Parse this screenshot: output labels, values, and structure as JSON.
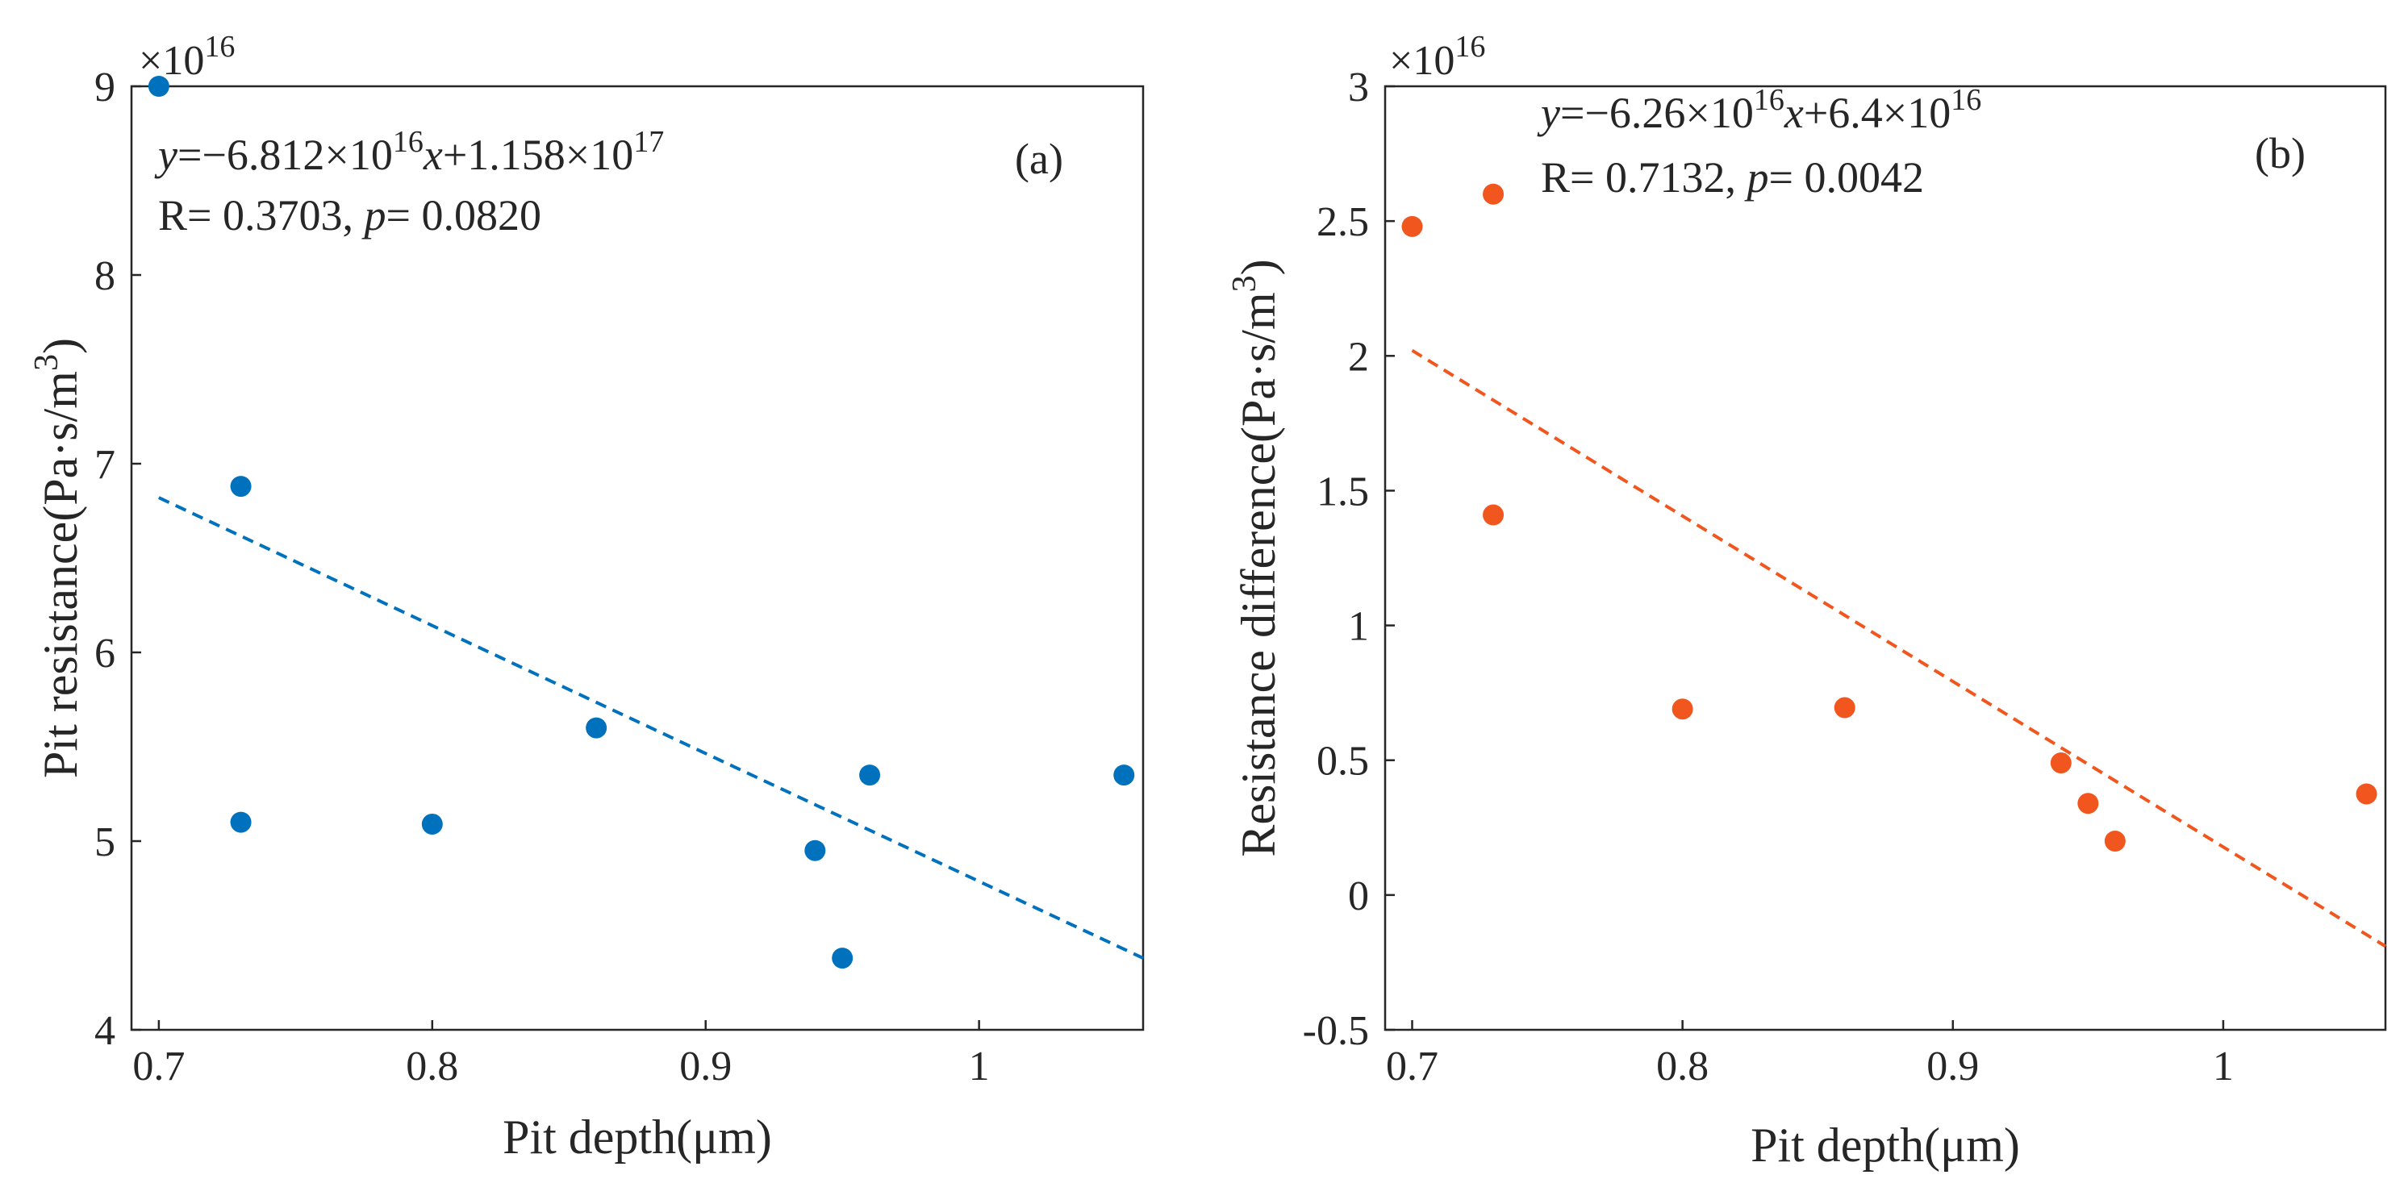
{
  "chart_data": [
    {
      "type": "scatter",
      "panel_label": "(a)",
      "xlabel": "Pit depth(μm)",
      "ylabel": "Pit resistance(Pa·s/m³)",
      "ylabel_main": "Pit resistance(Pa·s/m",
      "ylabel_sup": "3",
      "ylabel_close": ")",
      "y_exponent_label": "×10",
      "y_exponent_power": "16",
      "xlim": [
        0.69,
        1.06
      ],
      "ylim": [
        4,
        9
      ],
      "xticks": [
        0.7,
        0.8,
        0.9,
        1
      ],
      "xtick_labels": [
        "0.7",
        "0.8",
        "0.9",
        "1"
      ],
      "yticks": [
        4,
        5,
        6,
        7,
        8,
        9
      ],
      "ytick_labels": [
        "4",
        "5",
        "6",
        "7",
        "8",
        "9"
      ],
      "color": "#0072BD",
      "points": [
        {
          "x": 0.7,
          "y": 9.0
        },
        {
          "x": 0.73,
          "y": 6.88
        },
        {
          "x": 0.73,
          "y": 5.1
        },
        {
          "x": 0.8,
          "y": 5.09
        },
        {
          "x": 0.86,
          "y": 5.6
        },
        {
          "x": 0.94,
          "y": 4.95
        },
        {
          "x": 0.95,
          "y": 4.38
        },
        {
          "x": 0.96,
          "y": 5.35
        },
        {
          "x": 1.053,
          "y": 5.35
        }
      ],
      "fit_line": {
        "x": [
          0.7,
          1.06
        ],
        "y": [
          6.82,
          4.38
        ]
      },
      "annotation": {
        "eq_y": "y",
        "eq_a": "=−6.812×10",
        "eq_a_exp": "16",
        "eq_x": "x",
        "eq_b": "+1.158×10",
        "eq_b_exp": "17",
        "r_text": "R= 0.3703, ",
        "p_sym": "p",
        "p_text": "= 0.0820"
      }
    },
    {
      "type": "scatter",
      "panel_label": "(b)",
      "xlabel": "Pit depth(μm)",
      "ylabel": "Resistance difference(Pa·s/m³)",
      "ylabel_main": "Resistance difference(Pa·s/m",
      "ylabel_sup": "3",
      "ylabel_close": ")",
      "y_exponent_label": "×10",
      "y_exponent_power": "16",
      "xlim": [
        0.69,
        1.06
      ],
      "ylim": [
        -0.5,
        3
      ],
      "xticks": [
        0.7,
        0.8,
        0.9,
        1
      ],
      "xtick_labels": [
        "0.7",
        "0.8",
        "0.9",
        "1"
      ],
      "yticks": [
        -0.5,
        0,
        0.5,
        1,
        1.5,
        2,
        2.5,
        3
      ],
      "ytick_labels": [
        "-0.5",
        "0",
        "0.5",
        "1",
        "1.5",
        "2",
        "2.5",
        "3"
      ],
      "color": "#F0561D",
      "points": [
        {
          "x": 0.7,
          "y": 2.48
        },
        {
          "x": 0.73,
          "y": 2.6
        },
        {
          "x": 0.73,
          "y": 1.41
        },
        {
          "x": 0.8,
          "y": 0.69
        },
        {
          "x": 0.86,
          "y": 0.695
        },
        {
          "x": 0.94,
          "y": 0.49
        },
        {
          "x": 0.95,
          "y": 0.34
        },
        {
          "x": 0.96,
          "y": 0.2
        },
        {
          "x": 1.053,
          "y": 0.375
        }
      ],
      "fit_line": {
        "x": [
          0.7,
          1.06
        ],
        "y": [
          2.02,
          -0.19
        ]
      },
      "annotation": {
        "eq_y": "y",
        "eq_a": "=−6.26×10",
        "eq_a_exp": "16",
        "eq_x": "x",
        "eq_b": "+6.4×10",
        "eq_b_exp": "16",
        "r_text": "R= 0.7132, ",
        "p_sym": "p",
        "p_text": "= 0.0042"
      }
    }
  ]
}
